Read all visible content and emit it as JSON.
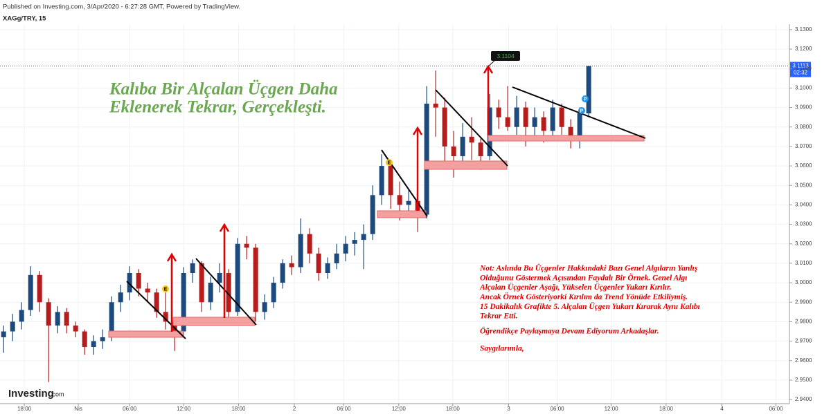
{
  "header": "Published on Investing.com, 3/Apr/2020 - 6:27:28 GMT, Powered by TradingView.",
  "chart_data": {
    "type": "candlestick",
    "symbol": "XAGg/TRY, 15",
    "title": [
      "Kalıba Bir Alçalan Üçgen Daha",
      "Eklenerek Tekrar, Gerçekleşti."
    ],
    "note": [
      "Not: Aslında Bu Üçgenler Hakkındaki Bazı Genel Algıların Yanlış",
      "Olduğunu Göstermek Açısından Faydalı Bir Örnek. Genel Algı",
      "Alçalan Üçgenler Aşağı, Yükselen Üçgenler Yukarı Kırılır.",
      "Ancak Örnek Gösteriyorki Kırılım da Trend Yönüde Etkiliymiş.",
      "15 Dakikalık Grafikte 5. Alçalan Üçgen Yukarı Kırarak Aynı Kalıbı",
      "Tekrar Etti."
    ],
    "closing": [
      "Öğrendikçe Paylaşmaya Devam Ediyorum Arkadaşlar.",
      "Saygılarımla,"
    ],
    "up_color": "#1c4a7e",
    "down_color": "#b71c1c",
    "ohlc": [
      [
        2.972,
        2.978,
        2.964,
        2.975
      ],
      [
        2.975,
        2.984,
        2.97,
        2.98
      ],
      [
        2.98,
        2.99,
        2.976,
        2.986
      ],
      [
        2.986,
        3.0085,
        2.983,
        3.004
      ],
      [
        3.004,
        3.006,
        2.985,
        2.99
      ],
      [
        2.99,
        2.992,
        2.949,
        2.978
      ],
      [
        2.978,
        2.988,
        2.974,
        2.985
      ],
      [
        2.985,
        2.987,
        2.974,
        2.978
      ],
      [
        2.978,
        2.98,
        2.972,
        2.975
      ],
      [
        2.975,
        2.976,
        2.963,
        2.967
      ],
      [
        2.967,
        2.973,
        2.963,
        2.97
      ],
      [
        2.97,
        2.976,
        2.966,
        2.972
      ],
      [
        2.972,
        2.993,
        2.97,
        2.99
      ],
      [
        2.99,
        2.999,
        2.985,
        2.995
      ],
      [
        2.995,
        3.0085,
        2.991,
        3.005
      ],
      [
        3.005,
        3.007,
        2.993,
        2.997
      ],
      [
        2.997,
        3.0,
        2.99,
        2.995
      ],
      [
        2.995,
        2.997,
        2.982,
        2.985
      ],
      [
        2.985,
        2.995,
        2.976,
        2.98
      ],
      [
        2.98,
        2.982,
        2.965,
        2.975
      ],
      [
        2.975,
        3.008,
        2.973,
        3.005
      ],
      [
        3.005,
        3.012,
        3.0,
        3.01
      ],
      [
        3.01,
        3.011,
        2.985,
        2.99
      ],
      [
        2.99,
        3.003,
        2.986,
        3.0
      ],
      [
        3.0,
        3.01,
        2.995,
        3.005
      ],
      [
        3.005,
        3.007,
        2.981,
        2.985
      ],
      [
        2.985,
        3.023,
        2.983,
        3.02
      ],
      [
        3.02,
        3.024,
        3.012,
        3.018
      ],
      [
        3.018,
        3.02,
        2.98,
        2.985
      ],
      [
        2.985,
        2.994,
        2.981,
        2.99
      ],
      [
        2.99,
        3.003,
        2.987,
        3.0
      ],
      [
        3.0,
        3.012,
        2.997,
        3.01
      ],
      [
        3.01,
        3.014,
        3.004,
        3.008
      ],
      [
        3.008,
        3.033,
        3.005,
        3.025
      ],
      [
        3.025,
        3.028,
        3.01,
        3.015
      ],
      [
        3.015,
        3.018,
        3.001,
        3.005
      ],
      [
        3.005,
        3.013,
        3.002,
        3.01
      ],
      [
        3.01,
        3.02,
        3.007,
        3.015
      ],
      [
        3.015,
        3.024,
        3.011,
        3.02
      ],
      [
        3.02,
        3.026,
        3.014,
        3.022
      ],
      [
        3.022,
        3.03,
        3.007,
        3.025
      ],
      [
        3.025,
        3.05,
        3.022,
        3.045
      ],
      [
        3.045,
        3.066,
        3.04,
        3.06
      ],
      [
        3.06,
        3.062,
        3.038,
        3.045
      ],
      [
        3.045,
        3.052,
        3.032,
        3.04
      ],
      [
        3.04,
        3.048,
        3.034,
        3.042
      ],
      [
        3.042,
        3.045,
        3.026,
        3.035
      ],
      [
        3.035,
        3.101,
        3.033,
        3.092
      ],
      [
        3.092,
        3.109,
        3.075,
        3.09
      ],
      [
        3.09,
        3.095,
        3.062,
        3.07
      ],
      [
        3.07,
        3.078,
        3.054,
        3.065
      ],
      [
        3.065,
        3.082,
        3.06,
        3.075
      ],
      [
        3.075,
        3.085,
        3.063,
        3.072
      ],
      [
        3.072,
        3.074,
        3.058,
        3.065
      ],
      [
        3.065,
        3.097,
        3.063,
        3.09
      ],
      [
        3.09,
        3.094,
        3.079,
        3.085
      ],
      [
        3.085,
        3.101,
        3.078,
        3.08
      ],
      [
        3.08,
        3.096,
        3.076,
        3.09
      ],
      [
        3.09,
        3.093,
        3.07,
        3.08
      ],
      [
        3.08,
        3.09,
        3.073,
        3.085
      ],
      [
        3.085,
        3.088,
        3.072,
        3.078
      ],
      [
        3.078,
        3.094,
        3.074,
        3.09
      ],
      [
        3.09,
        3.092,
        3.076,
        3.08
      ],
      [
        3.08,
        3.084,
        3.069,
        3.075
      ],
      [
        3.075,
        3.09,
        3.069,
        3.087
      ],
      [
        3.087,
        3.1115,
        3.085,
        3.1113
      ]
    ],
    "xlim": [
      -0.4,
      87.3
    ],
    "xticks": [
      {
        "value": 2.3,
        "label": "18:00"
      },
      {
        "value": 8.3,
        "label": "Nis"
      },
      {
        "value": 14.0,
        "label": "06:00"
      },
      {
        "value": 20.0,
        "label": "12:00"
      },
      {
        "value": 26.1,
        "label": "18:00"
      },
      {
        "value": 32.3,
        "label": "2"
      },
      {
        "value": 37.8,
        "label": "06:00"
      },
      {
        "value": 43.9,
        "label": "12:00"
      },
      {
        "value": 49.9,
        "label": "18:00"
      },
      {
        "value": 56.1,
        "label": "3"
      },
      {
        "value": 61.5,
        "label": "06:00"
      },
      {
        "value": 67.5,
        "label": "12:00"
      },
      {
        "value": 73.6,
        "label": "18:00"
      },
      {
        "value": 79.8,
        "label": "4"
      },
      {
        "value": 85.8,
        "label": "06:00"
      }
    ],
    "ylim": [
      2.9379,
      3.1328
    ],
    "yticks": [
      {
        "value": 2.94,
        "label": "2.9400"
      },
      {
        "value": 2.95,
        "label": "2.9500"
      },
      {
        "value": 2.96,
        "label": "2.9600"
      },
      {
        "value": 2.97,
        "label": "2.9700"
      },
      {
        "value": 2.98,
        "label": "2.9800"
      },
      {
        "value": 2.99,
        "label": "2.9900"
      },
      {
        "value": 3.0,
        "label": "3.0000"
      },
      {
        "value": 3.01,
        "label": "3.0100"
      },
      {
        "value": 3.02,
        "label": "3.0200"
      },
      {
        "value": 3.03,
        "label": "3.0300"
      },
      {
        "value": 3.04,
        "label": "3.0400"
      },
      {
        "value": 3.05,
        "label": "3.0500"
      },
      {
        "value": 3.06,
        "label": "3.0600"
      },
      {
        "value": 3.07,
        "label": "3.0700"
      },
      {
        "value": 3.08,
        "label": "3.0800"
      },
      {
        "value": 3.09,
        "label": "3.0900"
      },
      {
        "value": 3.1,
        "label": "3.1000"
      },
      {
        "value": 3.11,
        "label": "3.1100"
      },
      {
        "value": 3.12,
        "label": "3.1200"
      },
      {
        "value": 3.13,
        "label": "3.1300"
      }
    ],
    "grid": true,
    "last_price": 3.1113,
    "countdown": "02:32",
    "callout": 3.1104,
    "markers": [
      "E",
      "E",
      "P",
      "P"
    ]
  },
  "logo": "Investing",
  "logo_suffix": ".com"
}
